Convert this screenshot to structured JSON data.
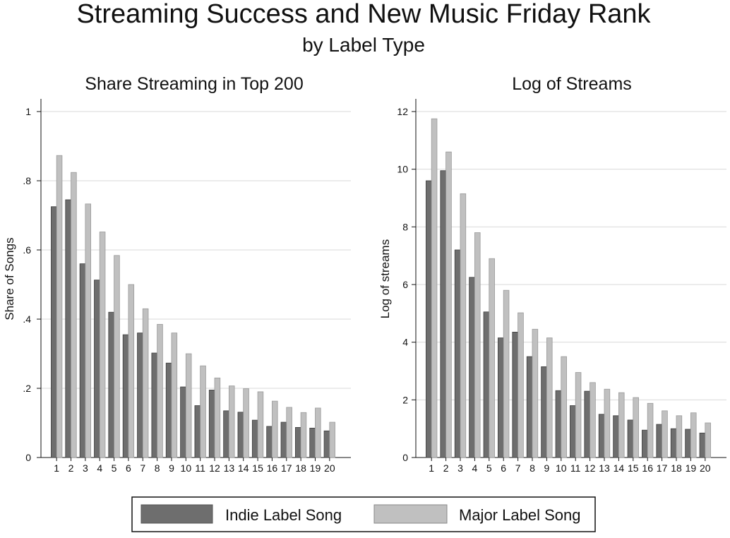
{
  "figure": {
    "title": "Streaming Success and New Music Friday Rank",
    "subtitle": "by Label Type"
  },
  "legend": {
    "items": [
      {
        "label": "Indie Label Song",
        "color": "#6e6e6e"
      },
      {
        "label": "Major Label Song",
        "color": "#c0c0c0"
      }
    ],
    "placement": "bottom-center"
  },
  "chart_data": [
    {
      "type": "bar",
      "title": "Share Streaming in Top 200",
      "ylabel": "Share of Songs",
      "xlabel": "",
      "ylim": [
        0,
        1
      ],
      "yticks": [
        0,
        0.2,
        0.4,
        0.6,
        0.8,
        1
      ],
      "ytick_labels": [
        "0",
        ".2",
        ".4",
        ".6",
        ".8",
        "1"
      ],
      "grid": true,
      "categories": [
        "1",
        "2",
        "3",
        "4",
        "5",
        "6",
        "7",
        "8",
        "9",
        "10",
        "11",
        "12",
        "13",
        "14",
        "15",
        "16",
        "17",
        "18",
        "19",
        "20"
      ],
      "series": [
        {
          "name": "Indie Label Song",
          "color": "#6e6e6e",
          "values": [
            0.725,
            0.745,
            0.56,
            0.513,
            0.42,
            0.355,
            0.36,
            0.302,
            0.273,
            0.204,
            0.15,
            0.195,
            0.135,
            0.131,
            0.108,
            0.09,
            0.102,
            0.087,
            0.085,
            0.077
          ]
        },
        {
          "name": "Major Label Song",
          "color": "#c0c0c0",
          "values": [
            0.873,
            0.824,
            0.733,
            0.652,
            0.584,
            0.5,
            0.43,
            0.385,
            0.36,
            0.3,
            0.265,
            0.23,
            0.207,
            0.199,
            0.19,
            0.163,
            0.145,
            0.13,
            0.143,
            0.102
          ]
        }
      ]
    },
    {
      "type": "bar",
      "title": "Log of Streams",
      "ylabel": "Log of streams",
      "xlabel": "",
      "ylim": [
        0,
        12
      ],
      "yticks": [
        0,
        2,
        4,
        6,
        8,
        10,
        12
      ],
      "ytick_labels": [
        "0",
        "2",
        "4",
        "6",
        "8",
        "10",
        "12"
      ],
      "grid": true,
      "categories": [
        "1",
        "2",
        "3",
        "4",
        "5",
        "6",
        "7",
        "8",
        "9",
        "10",
        "11",
        "12",
        "13",
        "14",
        "15",
        "16",
        "17",
        "18",
        "19",
        "20"
      ],
      "series": [
        {
          "name": "Indie Label Song",
          "color": "#6e6e6e",
          "values": [
            9.6,
            9.95,
            7.2,
            6.25,
            5.05,
            4.15,
            4.35,
            3.5,
            3.15,
            2.32,
            1.8,
            2.3,
            1.5,
            1.45,
            1.3,
            0.95,
            1.15,
            1.0,
            0.98,
            0.85
          ]
        },
        {
          "name": "Major Label Song",
          "color": "#c0c0c0",
          "values": [
            11.75,
            10.6,
            9.15,
            7.8,
            6.9,
            5.8,
            5.02,
            4.45,
            4.15,
            3.5,
            2.95,
            2.6,
            2.37,
            2.25,
            2.08,
            1.88,
            1.62,
            1.45,
            1.55,
            1.2
          ]
        }
      ]
    }
  ]
}
